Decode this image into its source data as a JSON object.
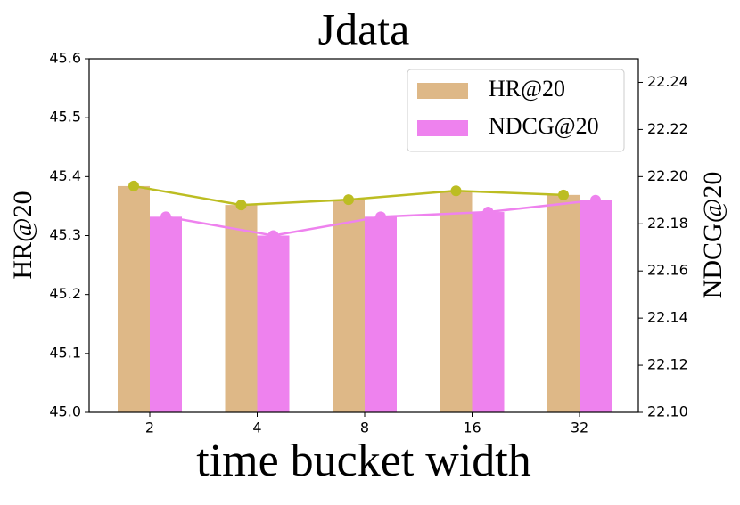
{
  "chart_data": {
    "type": "bar_line",
    "title": "Jdata",
    "x_label": "time bucket width",
    "y_label": "HR@20",
    "y2_label": "NDCG@20",
    "categories": [
      "2",
      "4",
      "8",
      "16",
      "32"
    ],
    "series": [
      {
        "name": "HR@20",
        "color": "#deb887",
        "line_color": "#bcbd22",
        "values": [
          45.384,
          45.352,
          45.361,
          45.376,
          45.369
        ]
      },
      {
        "name": "NDCG@20",
        "color": "#ee82ee",
        "line_color": "#ee82ee",
        "axis": "y2",
        "values": [
          22.183,
          22.175,
          22.183,
          22.185,
          22.19
        ]
      }
    ],
    "ylim": [
      45.0,
      45.6
    ],
    "yticks": [
      {
        "value": 45.0,
        "label": "45.0"
      },
      45.1,
      45.2,
      45.3,
      45.4,
      45.5,
      45.6
    ],
    "y2lim": [
      22.1,
      22.25
    ],
    "y2ticks": [
      {
        "value": 22.1,
        "label": "22.10"
      },
      22.12,
      22.14,
      22.16,
      22.18,
      {
        "value": 22.2,
        "label": "22.20"
      },
      22.22,
      22.24
    ],
    "grid": false,
    "legend": "upper right"
  }
}
